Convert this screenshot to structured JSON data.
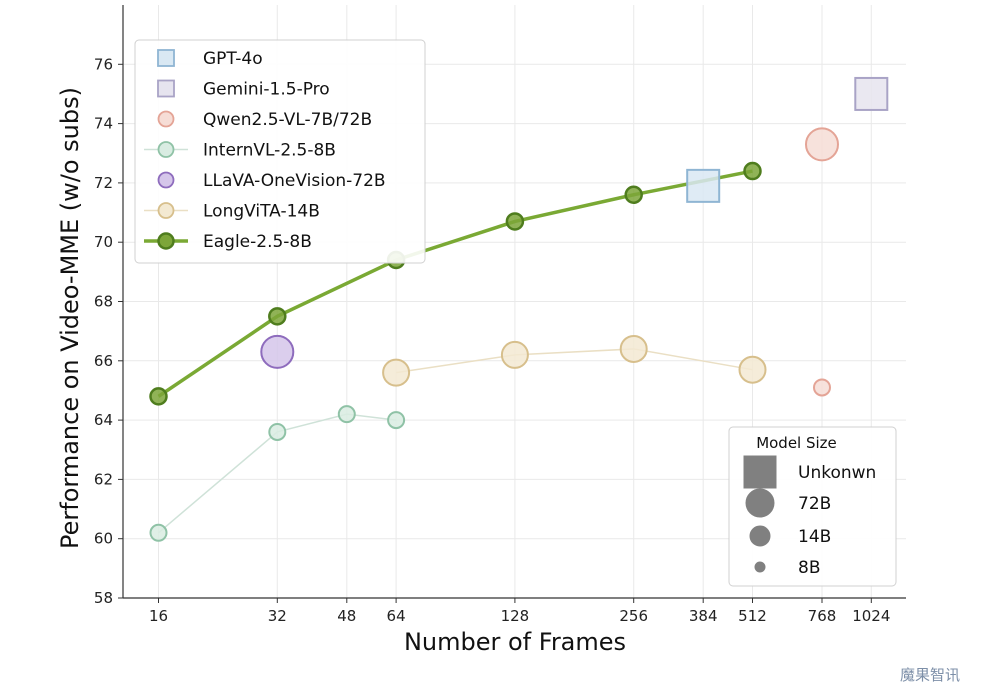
{
  "chart_data": {
    "type": "scatter",
    "xlabel": "Number of Frames",
    "ylabel": "Performance on Video-MME (w/o subs)",
    "x_scale": "log2",
    "xticks": [
      16,
      32,
      48,
      64,
      128,
      256,
      384,
      512,
      768,
      1024
    ],
    "ylim": [
      58,
      78
    ],
    "yticks": [
      58,
      60,
      62,
      64,
      66,
      68,
      70,
      72,
      74,
      76
    ],
    "grid": true,
    "legend_placement": "top-left",
    "series": [
      {
        "name": "GPT-4o",
        "marker": "square",
        "color": "#8fb5d3",
        "fill": "#d9e8f3",
        "line": false,
        "size": "Unknown",
        "points": [
          {
            "x": 384,
            "y": 71.9
          }
        ]
      },
      {
        "name": "Gemini-1.5-Pro",
        "marker": "square",
        "color": "#a9a3c6",
        "fill": "#e6e4ef",
        "line": false,
        "size": "Unknown",
        "points": [
          {
            "x": 1024,
            "y": 75.0
          }
        ]
      },
      {
        "name": "Qwen2.5-VL-7B/72B",
        "marker": "circle",
        "color": "#e4a496",
        "fill": "#f6ddd6",
        "line": false,
        "points": [
          {
            "x": 768,
            "y": 73.3,
            "size": "72B"
          },
          {
            "x": 768,
            "y": 65.1,
            "size": "8B"
          }
        ]
      },
      {
        "name": "InternVL-2.5-8B",
        "marker": "circle",
        "color": "#8fc2a6",
        "fill": "#d9ece2",
        "line": true,
        "line_color": "#cfe2d8",
        "size": "8B",
        "points": [
          {
            "x": 16,
            "y": 60.2
          },
          {
            "x": 32,
            "y": 63.6
          },
          {
            "x": 48,
            "y": 64.2
          },
          {
            "x": 64,
            "y": 64.0
          }
        ]
      },
      {
        "name": "LLaVA-OneVision-72B",
        "marker": "circle",
        "color": "#8e6cbd",
        "fill": "#d5c6ea",
        "line": false,
        "size": "72B",
        "points": [
          {
            "x": 32,
            "y": 66.3
          }
        ]
      },
      {
        "name": "LongViTA-14B",
        "marker": "circle",
        "color": "#d7bf8c",
        "fill": "#f3e9d2",
        "line": true,
        "line_color": "#eadfc4",
        "size": "14B",
        "points": [
          {
            "x": 64,
            "y": 65.6
          },
          {
            "x": 128,
            "y": 66.2
          },
          {
            "x": 256,
            "y": 66.4
          },
          {
            "x": 512,
            "y": 65.7
          }
        ]
      },
      {
        "name": "Eagle-2.5-8B",
        "marker": "circle",
        "color": "#4f7d1e",
        "fill": "#7da63a",
        "line": true,
        "line_color": "#7aa934",
        "line_width": 3.5,
        "size": "8B",
        "points": [
          {
            "x": 16,
            "y": 64.8
          },
          {
            "x": 32,
            "y": 67.5
          },
          {
            "x": 64,
            "y": 69.4
          },
          {
            "x": 128,
            "y": 70.7
          },
          {
            "x": 256,
            "y": 71.6
          },
          {
            "x": 512,
            "y": 72.4
          }
        ]
      }
    ],
    "size_legend": {
      "title": "Model Size",
      "items": [
        {
          "label": "Unkonwn",
          "marker": "square"
        },
        {
          "label": "72B",
          "marker": "circle"
        },
        {
          "label": "14B",
          "marker": "circle"
        },
        {
          "label": "8B",
          "marker": "circle"
        }
      ],
      "placement": "bottom-right"
    },
    "watermark": "魔果智讯"
  }
}
